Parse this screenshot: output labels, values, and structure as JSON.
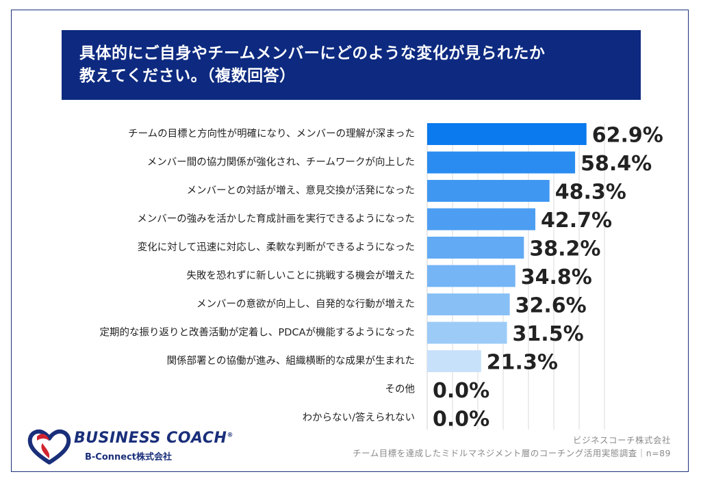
{
  "title": {
    "line1": "具体的にご自身やチームメンバーにどのような変化が見られたか",
    "line2": "教えてください。（複数回答）"
  },
  "chart_data": {
    "type": "bar",
    "orientation": "horizontal",
    "title": "具体的にご自身やチームメンバーにどのような変化が見られたか 教えてください。（複数回答）",
    "categories": [
      "チームの目標と方向性が明確になり、メンバーの理解が深まった",
      "メンバー間の協力関係が強化され、チームワークが向上した",
      "メンバーとの対話が増え、意見交換が活発になった",
      "メンバーの強みを活かした育成計画を実行できるようになった",
      "変化に対して迅速に対応し、柔軟な判断ができるようになった",
      "失敗を恐れずに新しいことに挑戦する機会が増えた",
      "メンバーの意欲が向上し、自発的な行動が増えた",
      "定期的な振り返りと改善活動が定着し、PDCAが機能するようになった",
      "関係部署との協働が進み、組織横断的な成果が生まれた",
      "その他",
      "わからない/答えられない"
    ],
    "values": [
      62.9,
      58.4,
      48.3,
      42.7,
      38.2,
      34.8,
      32.6,
      31.5,
      21.3,
      0.0,
      0.0
    ],
    "value_labels": [
      "62.9%",
      "58.4%",
      "48.3%",
      "42.7%",
      "38.2%",
      "34.8%",
      "32.6%",
      "31.5%",
      "21.3%",
      "0.0%",
      "0.0%"
    ],
    "bar_colors": [
      "#0a7aee",
      "#2a8cf0",
      "#3f97f1",
      "#4d9ef2",
      "#62aaf3",
      "#75b5f5",
      "#88c0f6",
      "#9ccbf7",
      "#c8e1fb",
      "#c8e1fb",
      "#c8e1fb"
    ],
    "xlim": [
      0,
      100
    ],
    "grid": true,
    "grid_color": "#d9d9d9"
  },
  "logo": {
    "wordmark": "BUSINESS COACH",
    "registered": "®",
    "sub": "B-Connect株式会社"
  },
  "source": {
    "company": "ビジネスコーチ株式会社",
    "survey": "チーム目標を達成したミドルマネジメント層のコーチング活用実態調査｜n=89"
  }
}
